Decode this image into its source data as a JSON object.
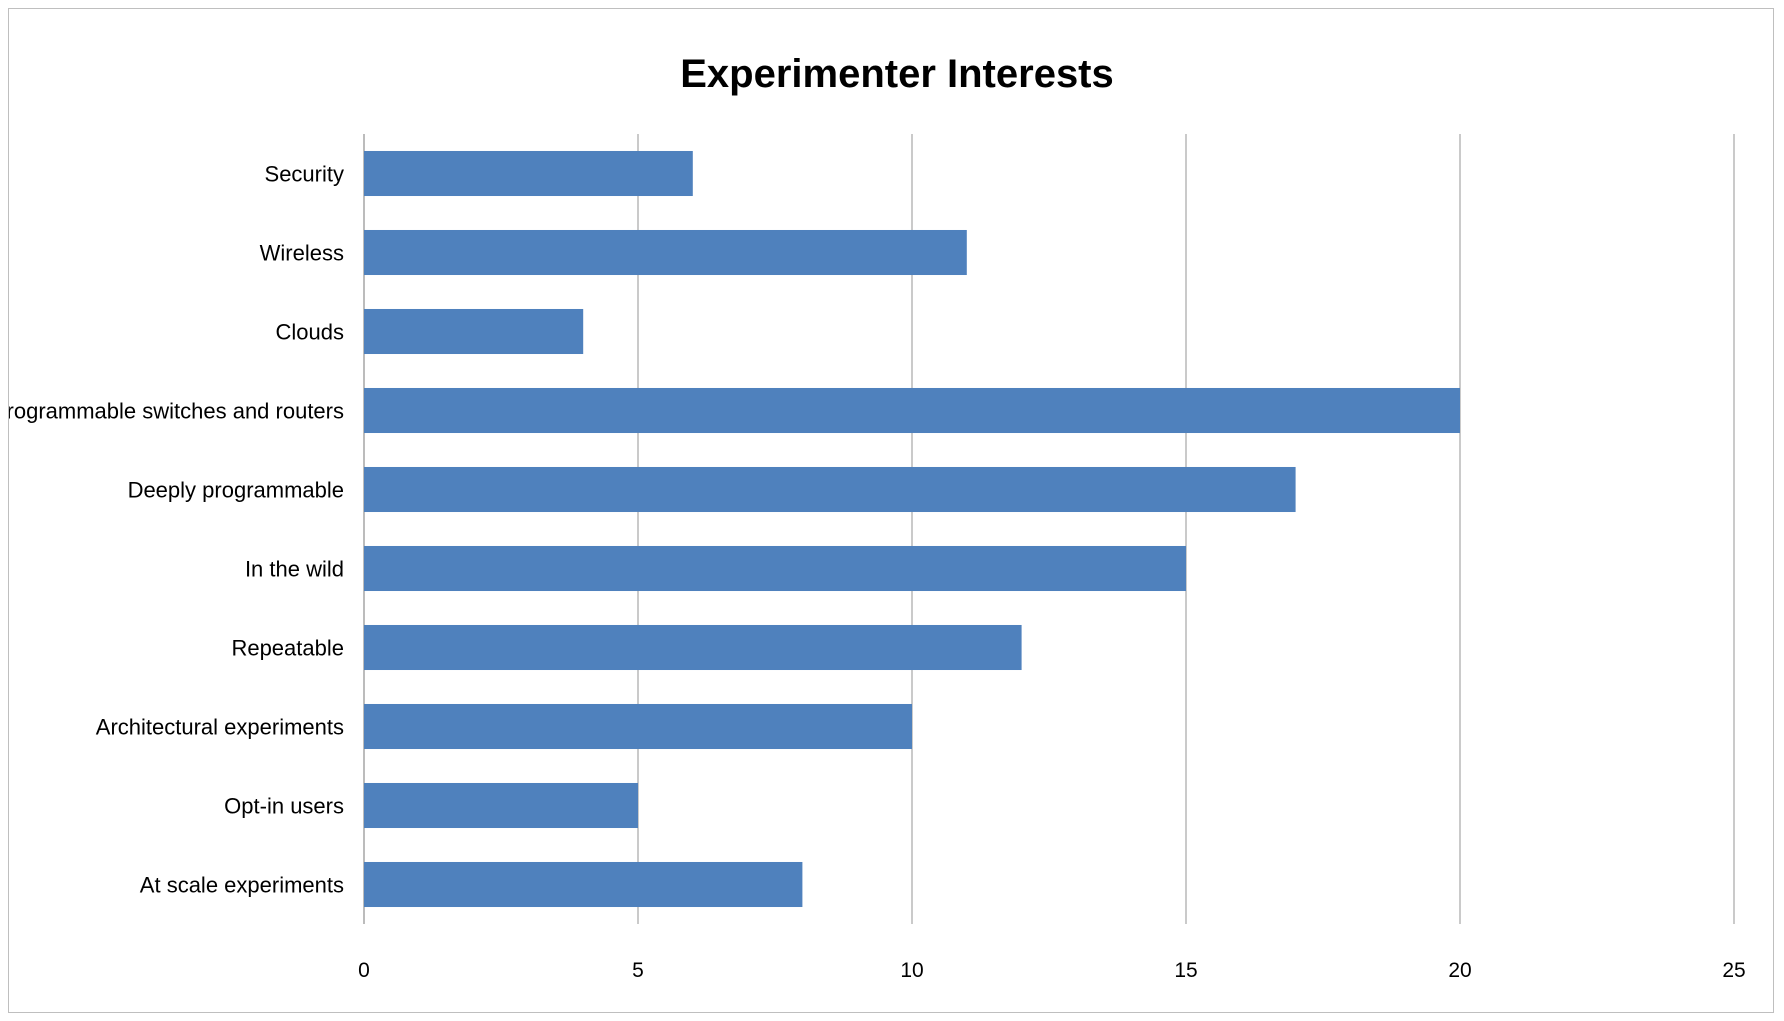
{
  "chart_data": {
    "type": "bar",
    "orientation": "horizontal",
    "title": "Experimenter Interests",
    "xlabel": "",
    "ylabel": "",
    "categories": [
      "Security",
      "Wireless",
      "Clouds",
      "Programmable switches and routers",
      "Deeply programmable",
      "In the wild",
      "Repeatable",
      "Architectural experiments",
      "Opt-in users",
      "At scale experiments"
    ],
    "values": [
      6,
      11,
      4,
      20,
      17,
      15,
      12,
      10,
      5,
      8
    ],
    "xlim": [
      0,
      25
    ],
    "ticks": [
      "0",
      "5",
      "10",
      "15",
      "20",
      "25"
    ],
    "grid": "vertical",
    "legend": "none",
    "bar_color": "#4f81bd",
    "grid_color": "#a6a6a6"
  }
}
